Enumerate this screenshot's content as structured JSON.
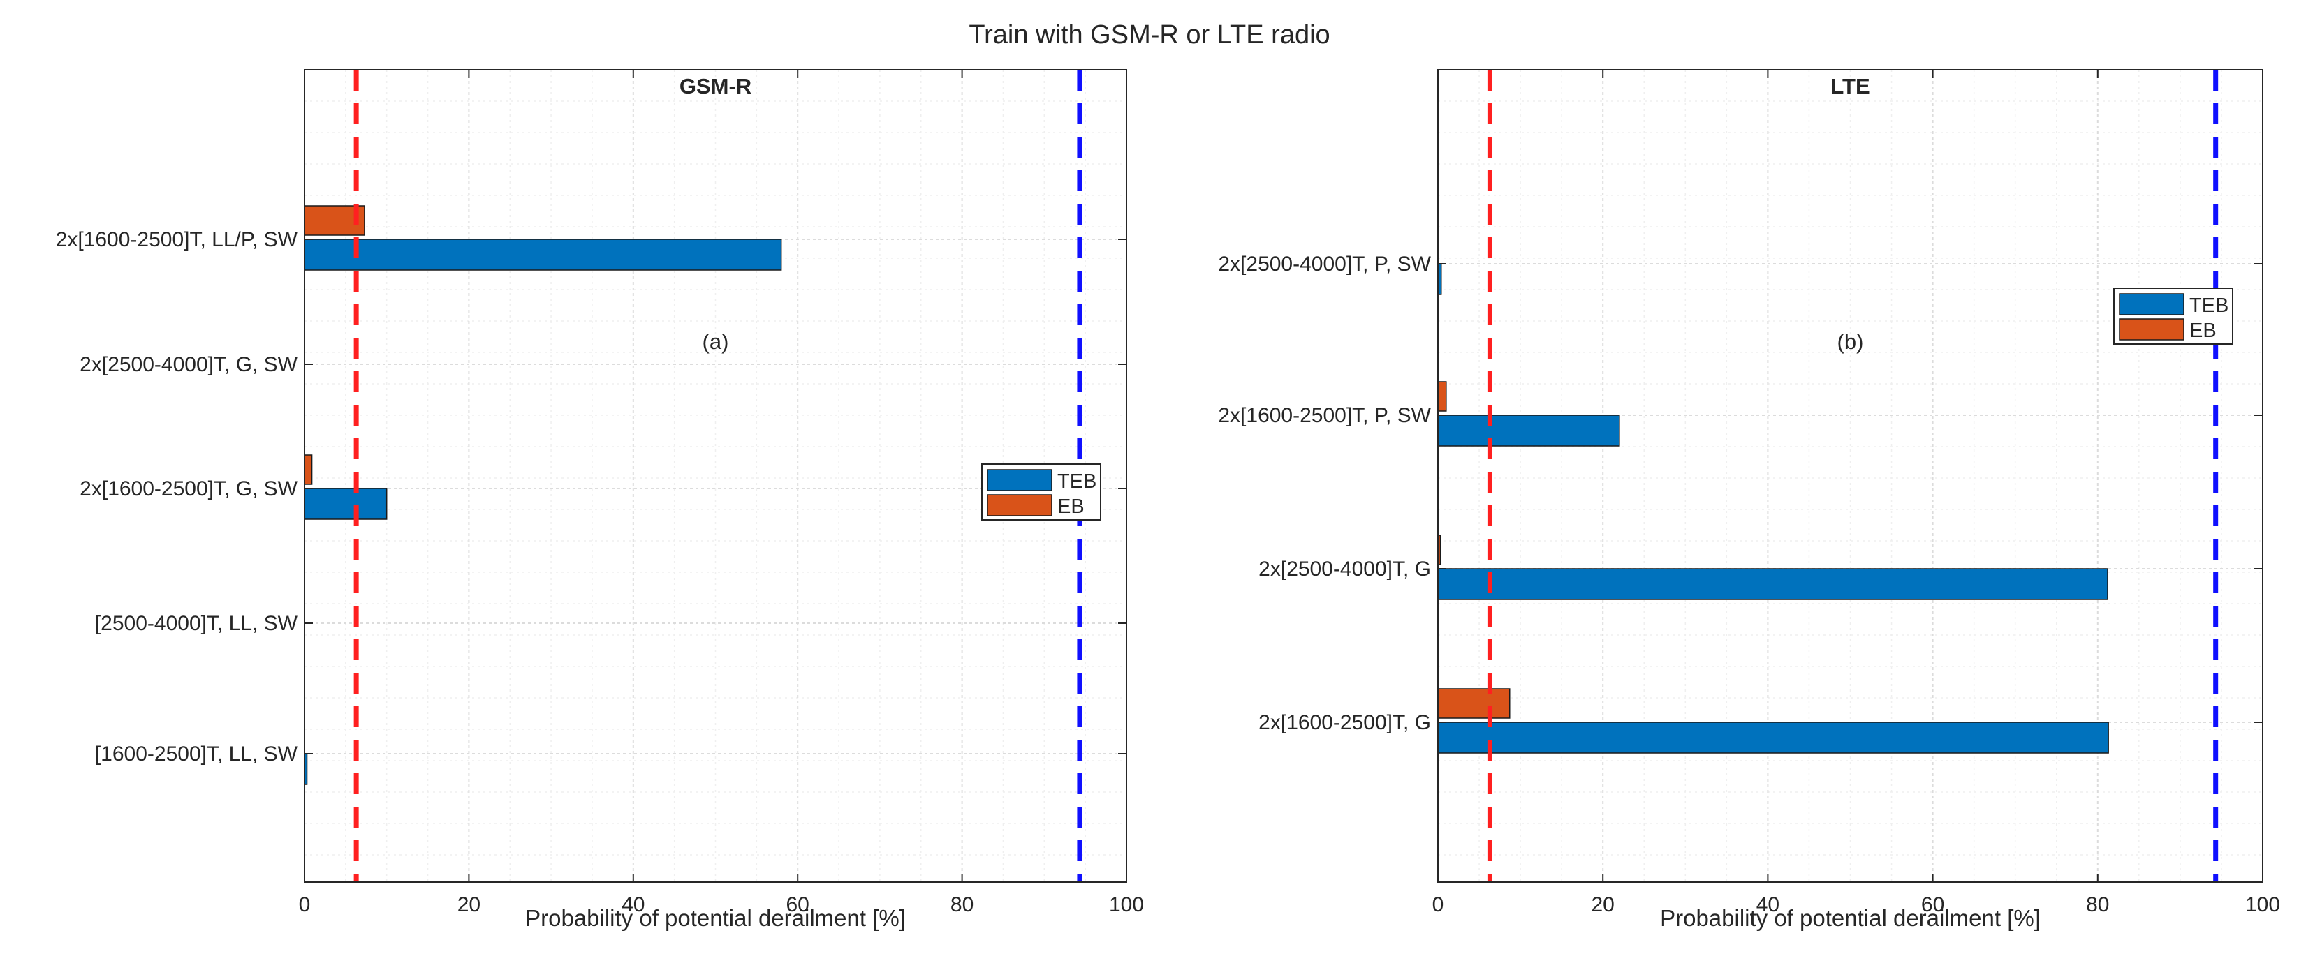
{
  "figure": {
    "title": "Train with GSM-R or LTE radio"
  },
  "colors": {
    "teb": "#0072BD",
    "eb": "#D95319",
    "red_line": "#FF2020",
    "blue_line": "#1010FF",
    "axis": "#262626",
    "grid": "#DCDCDC"
  },
  "chart_data": [
    {
      "type": "bar",
      "orientation": "horizontal",
      "title": "GSM-R",
      "panel_label": "(a)",
      "xlabel": "Probability of potential derailment [%]",
      "ylabel": "",
      "xlim": [
        0,
        100
      ],
      "xticks": [
        0,
        20,
        40,
        60,
        80,
        100
      ],
      "grid": true,
      "legend_position": "middle-right",
      "categories": [
        "2x[1600-2500]T, LL/P, SW",
        "2x[2500-4000]T, G, SW",
        "2x[1600-2500]T, G, SW",
        "[2500-4000]T, LL, SW",
        "[1600-2500]T, LL, SW"
      ],
      "series": [
        {
          "name": "TEB",
          "values": [
            58,
            0,
            10,
            0,
            0.3
          ]
        },
        {
          "name": "EB",
          "values": [
            7.3,
            0,
            0.9,
            0,
            0
          ]
        }
      ],
      "reference_lines": [
        {
          "x": 6.3,
          "color": "red",
          "style": "dashed"
        },
        {
          "x": 94.3,
          "color": "blue",
          "style": "dashed"
        }
      ]
    },
    {
      "type": "bar",
      "orientation": "horizontal",
      "title": "LTE",
      "panel_label": "(b)",
      "xlabel": "Probability of potential derailment [%]",
      "ylabel": "",
      "xlim": [
        0,
        100
      ],
      "xticks": [
        0,
        20,
        40,
        60,
        80,
        100
      ],
      "grid": true,
      "legend_position": "upper-right",
      "categories": [
        "2x[2500-4000]T, P, SW",
        "2x[1600-2500]T, P, SW",
        "2x[2500-4000]T, G",
        "2x[1600-2500]T, G"
      ],
      "series": [
        {
          "name": "TEB",
          "values": [
            0.4,
            22,
            81.2,
            81.3
          ]
        },
        {
          "name": "EB",
          "values": [
            0,
            1,
            0.3,
            8.7
          ]
        }
      ],
      "reference_lines": [
        {
          "x": 6.3,
          "color": "red",
          "style": "dashed"
        },
        {
          "x": 94.3,
          "color": "blue",
          "style": "dashed"
        }
      ]
    }
  ]
}
